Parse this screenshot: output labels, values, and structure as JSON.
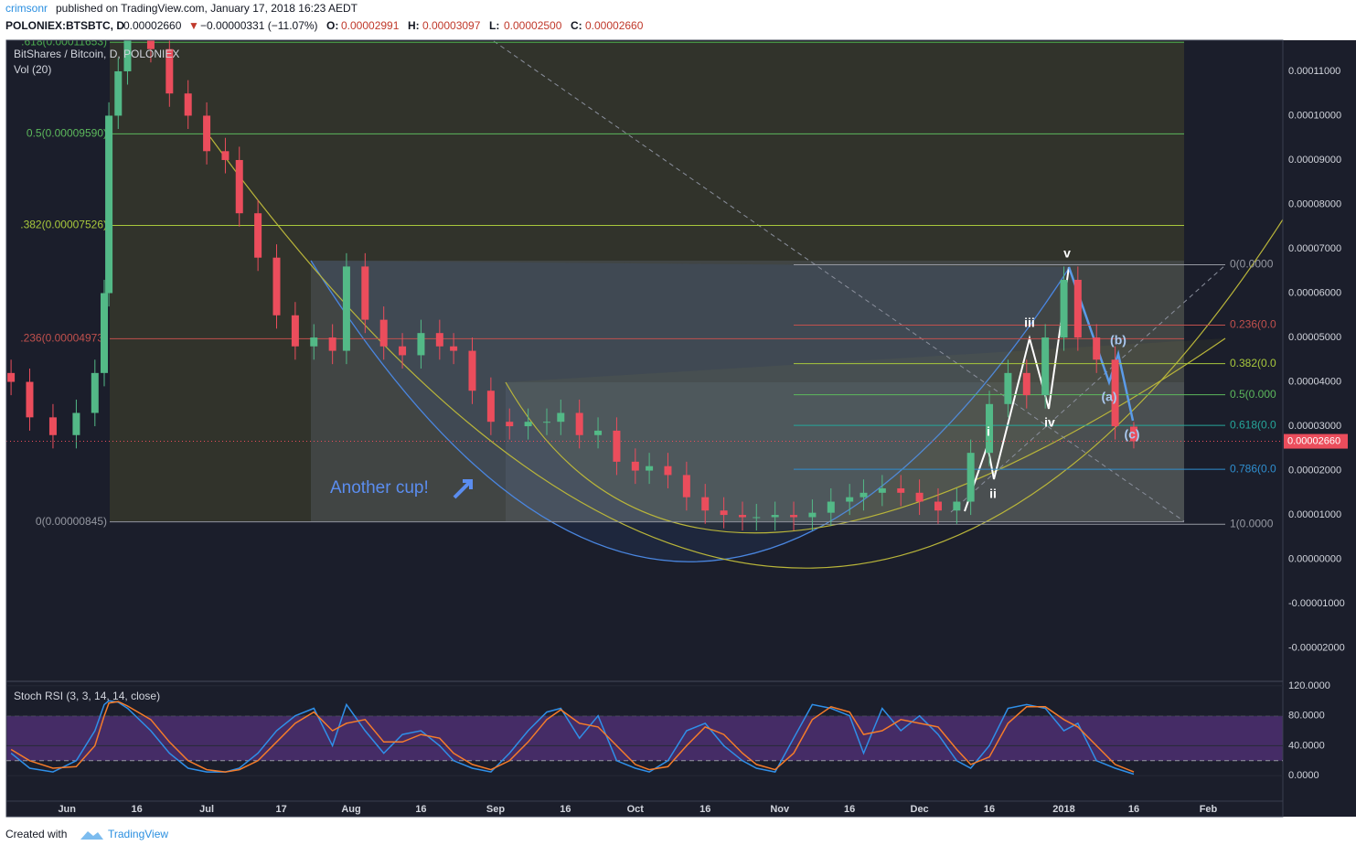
{
  "header": {
    "author": "crimsonr",
    "published": "published on TradingView.com, January 17, 2018 16:23 AEDT",
    "symbol": "POLONIEX:BTSBTC, D",
    "last": "0.00002660",
    "change": "−0.00000331 (−11.07%)",
    "ohlc": [
      {
        "key": "O:",
        "value": "0.00002991"
      },
      {
        "key": "H:",
        "value": "0.00003097"
      },
      {
        "key": "L:",
        "value": "0.00002500"
      },
      {
        "key": "C:",
        "value": "0.00002660"
      }
    ]
  },
  "footer": {
    "created": "Created with",
    "brand": "TradingView"
  },
  "chart_data": [
    {
      "type": "candlestick",
      "title": "BitShares / Bitcoin, D, POLONIEX",
      "subtitle": "Vol (20)",
      "x": [
        -12,
        -8,
        -3,
        2,
        6,
        8,
        9,
        11,
        13,
        18,
        22,
        26,
        30,
        34,
        37,
        41,
        45,
        49,
        53,
        57,
        60,
        64,
        68,
        72,
        76,
        80,
        83,
        87,
        91,
        95,
        99,
        103,
        106,
        110,
        114,
        118,
        122,
        125,
        129,
        133,
        137,
        141,
        145,
        148,
        152,
        156,
        160,
        164,
        168,
        171,
        175,
        179,
        183,
        187,
        191,
        194,
        198,
        202,
        206,
        210,
        214,
        217,
        221,
        225,
        229
      ],
      "series": [
        {
          "name": "BTSBTC",
          "up_color": "#53b987",
          "down_color": "#eb4d5c",
          "open": [
            4.2e-05,
            4e-05,
            3.2e-05,
            2.8e-05,
            3.3e-05,
            4.2e-05,
            6e-05,
            0.0001,
            0.00011,
            0.000118,
            0.000115,
            0.000105,
            0.0001,
            9.2e-05,
            9e-05,
            7.8e-05,
            6.8e-05,
            5.5e-05,
            4.8e-05,
            5e-05,
            4.7e-05,
            6.6e-05,
            5.4e-05,
            4.8e-05,
            4.6e-05,
            5.1e-05,
            4.8e-05,
            4.7e-05,
            3.8e-05,
            3.1e-05,
            3e-05,
            3.1e-05,
            3.1e-05,
            3.3e-05,
            2.8e-05,
            2.9e-05,
            2.2e-05,
            2e-05,
            2.1e-05,
            1.9e-05,
            1.4e-05,
            1.1e-05,
            1e-05,
            9.5e-06,
            9.5e-06,
            1e-05,
            9.5e-06,
            1.05e-05,
            1.3e-05,
            1.4e-05,
            1.5e-05,
            1.6e-05,
            1.5e-05,
            1.3e-05,
            1.1e-05,
            1.3e-05,
            2.4e-05,
            3.5e-05,
            4.2e-05,
            3.7e-05,
            5e-05,
            6.3e-05,
            5e-05,
            4.5e-05,
            2.991e-05
          ],
          "high": [
            4.5e-05,
            4.3e-05,
            3.5e-05,
            3.6e-05,
            4.5e-05,
            6.3e-05,
            0.000103,
            0.000113,
            0.000121,
            0.000121,
            0.000118,
            0.000108,
            0.000103,
            9.5e-05,
            9.3e-05,
            8.1e-05,
            7.1e-05,
            5.8e-05,
            5.3e-05,
            5.3e-05,
            6.9e-05,
            6.9e-05,
            5.7e-05,
            5.1e-05,
            5.4e-05,
            5.4e-05,
            5.1e-05,
            5e-05,
            4.1e-05,
            3.4e-05,
            3.4e-05,
            3.4e-05,
            3.6e-05,
            3.6e-05,
            3.2e-05,
            3.2e-05,
            2.5e-05,
            2.4e-05,
            2.4e-05,
            2.2e-05,
            1.7e-05,
            1.4e-05,
            1.3e-05,
            1.25e-05,
            1.3e-05,
            1.3e-05,
            1.35e-05,
            1.6e-05,
            1.7e-05,
            1.8e-05,
            1.9e-05,
            1.9e-05,
            1.8e-05,
            1.6e-05,
            1.6e-05,
            2.7e-05,
            3.8e-05,
            4.5e-05,
            4.5e-05,
            5.3e-05,
            6.6e-05,
            6.6e-05,
            5.3e-05,
            4.8e-05,
            3.097e-05
          ],
          "low": [
            3.7e-05,
            2.9e-05,
            2.5e-05,
            2.5e-05,
            3e-05,
            3.9e-05,
            5.7e-05,
            9.7e-05,
            0.000107,
            0.000112,
            0.000102,
            9.7e-05,
            8.9e-05,
            8.7e-05,
            7.5e-05,
            6.5e-05,
            5.2e-05,
            4.5e-05,
            4.5e-05,
            4.4e-05,
            4.4e-05,
            5.1e-05,
            4.5e-05,
            4.3e-05,
            4.3e-05,
            4.5e-05,
            4.4e-05,
            3.5e-05,
            2.8e-05,
            2.7e-05,
            2.7e-05,
            2.8e-05,
            2.8e-05,
            2.5e-05,
            2.5e-05,
            1.9e-05,
            1.7e-05,
            1.7e-05,
            1.6e-05,
            1.1e-05,
            8e-06,
            7e-06,
            6.5e-06,
            6.5e-06,
            6.5e-06,
            6.5e-06,
            6.5e-06,
            7.5e-06,
            1e-05,
            1.1e-05,
            1.2e-05,
            1.2e-05,
            1e-05,
            8e-06,
            8e-06,
            1e-05,
            2.1e-05,
            3.2e-05,
            3.4e-05,
            3.4e-05,
            4.7e-05,
            4.7e-05,
            4.2e-05,
            2.7e-05,
            2.5e-05
          ],
          "close": [
            4e-05,
            3.2e-05,
            2.8e-05,
            3.3e-05,
            4.2e-05,
            6e-05,
            0.0001,
            0.00011,
            0.000118,
            0.000115,
            0.000105,
            0.0001,
            9.2e-05,
            9e-05,
            7.8e-05,
            6.8e-05,
            5.5e-05,
            4.8e-05,
            5e-05,
            4.7e-05,
            6.6e-05,
            5.4e-05,
            4.8e-05,
            4.6e-05,
            5.1e-05,
            4.8e-05,
            4.7e-05,
            3.8e-05,
            3.1e-05,
            3e-05,
            3.1e-05,
            3.1e-05,
            3.3e-05,
            2.8e-05,
            2.9e-05,
            2.2e-05,
            2e-05,
            2.1e-05,
            1.9e-05,
            1.4e-05,
            1.1e-05,
            1e-05,
            9.5e-06,
            9.5e-06,
            1e-05,
            9.5e-06,
            1.05e-05,
            1.3e-05,
            1.4e-05,
            1.5e-05,
            1.6e-05,
            1.5e-05,
            1.3e-05,
            1.1e-05,
            1.3e-05,
            2.4e-05,
            3.5e-05,
            4.2e-05,
            3.7e-05,
            5e-05,
            6.3e-05,
            5e-05,
            4.5e-05,
            3e-05,
            2.66e-05
          ]
        }
      ],
      "last_price": {
        "value": 2.66e-05,
        "label": "0.00002660",
        "color": "#eb4d5c"
      },
      "xlim": [
        -13,
        261
      ],
      "xticks": [
        {
          "value": 0,
          "label": "Jun"
        },
        {
          "value": 15,
          "label": "16"
        },
        {
          "value": 30,
          "label": "Jul"
        },
        {
          "value": 46,
          "label": "17"
        },
        {
          "value": 61,
          "label": "Aug"
        },
        {
          "value": 76,
          "label": "16"
        },
        {
          "value": 92,
          "label": "Sep"
        },
        {
          "value": 107,
          "label": "16"
        },
        {
          "value": 122,
          "label": "Oct"
        },
        {
          "value": 137,
          "label": "16"
        },
        {
          "value": 153,
          "label": "Nov"
        },
        {
          "value": 168,
          "label": "16"
        },
        {
          "value": 183,
          "label": "Dec"
        },
        {
          "value": 198,
          "label": "16"
        },
        {
          "value": 214,
          "label": "2018"
        },
        {
          "value": 229,
          "label": "16"
        },
        {
          "value": 245,
          "label": "Feb"
        }
      ],
      "ylim": [
        -2.75e-05,
        0.000117
      ],
      "yticks": [
        {
          "value": -2e-05,
          "label": "-0.00002000"
        },
        {
          "value": -1e-05,
          "label": "-0.00001000"
        },
        {
          "value": 0,
          "label": "0.00000000"
        },
        {
          "value": 1e-05,
          "label": "0.00001000"
        },
        {
          "value": 2e-05,
          "label": "0.00002000"
        },
        {
          "value": 3e-05,
          "label": "0.00003000"
        },
        {
          "value": 4e-05,
          "label": "0.00004000"
        },
        {
          "value": 5e-05,
          "label": "0.00005000"
        },
        {
          "value": 6e-05,
          "label": "0.00006000"
        },
        {
          "value": 7e-05,
          "label": "0.00007000"
        },
        {
          "value": 8e-05,
          "label": "0.00008000"
        },
        {
          "value": 9e-05,
          "label": "0.00009000"
        },
        {
          "value": 0.0001,
          "label": "0.00010000"
        },
        {
          "value": 0.00011,
          "label": "0.00011000"
        }
      ],
      "fib_left": [
        {
          "value": 0.00011653,
          "label": ".618(0.00011653)",
          "color": "#4caf50"
        },
        {
          "value": 9.59e-05,
          "label": "0.5(0.00009590)",
          "color": "#5cb85c"
        },
        {
          "value": 7.526e-05,
          "label": ".382(0.00007526)",
          "color": "#a8c83c"
        },
        {
          "value": 4.973e-05,
          "label": ".236(0.00004973)",
          "color": "#c0504d"
        },
        {
          "value": 8.45e-06,
          "label": "0(0.00000845)",
          "color": "#9598a1"
        }
      ],
      "fib_right": [
        {
          "value": 6.64e-05,
          "label": "0(0.0000",
          "color": "#9598a1"
        },
        {
          "value": 5.28e-05,
          "label": "0.236(0.0",
          "color": "#c0504d"
        },
        {
          "value": 4.41e-05,
          "label": "0.382(0.0",
          "color": "#a8c83c"
        },
        {
          "value": 3.71e-05,
          "label": "0.5(0.000",
          "color": "#5cb85c"
        },
        {
          "value": 3.02e-05,
          "label": "0.618(0.0",
          "color": "#26a69a"
        },
        {
          "value": 2.03e-05,
          "label": "0.786(0.0",
          "color": "#2f8fd0"
        },
        {
          "value": 7.9e-06,
          "label": "1(0.0000",
          "color": "#9598a1"
        }
      ],
      "annotations": {
        "cup": "Another cup!",
        "waves": [
          "i",
          "ii",
          "iii",
          "iv",
          "v",
          "(a)",
          "(b)",
          "(c)"
        ]
      }
    },
    {
      "type": "line",
      "title": "Stoch RSI (3, 3, 14, 14, close)",
      "x": [
        -12,
        -8,
        -3,
        2,
        6,
        8,
        9,
        11,
        13,
        18,
        22,
        26,
        30,
        34,
        37,
        41,
        45,
        49,
        53,
        57,
        60,
        64,
        68,
        72,
        76,
        80,
        83,
        87,
        91,
        95,
        99,
        103,
        106,
        110,
        114,
        118,
        122,
        125,
        129,
        133,
        137,
        141,
        145,
        148,
        152,
        156,
        160,
        164,
        168,
        171,
        175,
        179,
        183,
        187,
        191,
        194,
        198,
        202,
        206,
        210,
        214,
        217,
        221,
        225,
        229
      ],
      "series": [
        {
          "name": "K",
          "color": "#2f8fe8",
          "values": [
            30,
            10,
            5,
            20,
            60,
            95,
            100,
            98,
            90,
            60,
            30,
            10,
            5,
            5,
            10,
            30,
            60,
            80,
            90,
            40,
            95,
            60,
            30,
            55,
            60,
            40,
            20,
            10,
            5,
            30,
            60,
            85,
            90,
            50,
            80,
            20,
            10,
            5,
            20,
            60,
            70,
            40,
            20,
            10,
            5,
            50,
            95,
            90,
            80,
            30,
            90,
            60,
            80,
            55,
            20,
            10,
            40,
            90,
            95,
            90,
            60,
            70,
            20,
            10,
            2
          ]
        },
        {
          "name": "D",
          "color": "#f57c2a",
          "values": [
            35,
            20,
            10,
            12,
            40,
            80,
            97,
            99,
            93,
            75,
            45,
            20,
            8,
            5,
            8,
            20,
            45,
            70,
            85,
            60,
            70,
            75,
            45,
            45,
            55,
            50,
            30,
            15,
            8,
            20,
            45,
            75,
            88,
            70,
            65,
            40,
            15,
            8,
            12,
            40,
            65,
            55,
            30,
            15,
            8,
            30,
            75,
            92,
            85,
            55,
            60,
            75,
            70,
            65,
            35,
            15,
            25,
            70,
            92,
            92,
            75,
            65,
            40,
            15,
            5
          ]
        }
      ],
      "band": [
        20,
        80
      ],
      "ylim": [
        -34,
        126
      ],
      "yticks": [
        {
          "value": 0,
          "label": "0.0000"
        },
        {
          "value": 40,
          "label": "40.0000"
        },
        {
          "value": 80,
          "label": "80.0000"
        },
        {
          "value": 120,
          "label": "120.0000"
        }
      ]
    }
  ]
}
